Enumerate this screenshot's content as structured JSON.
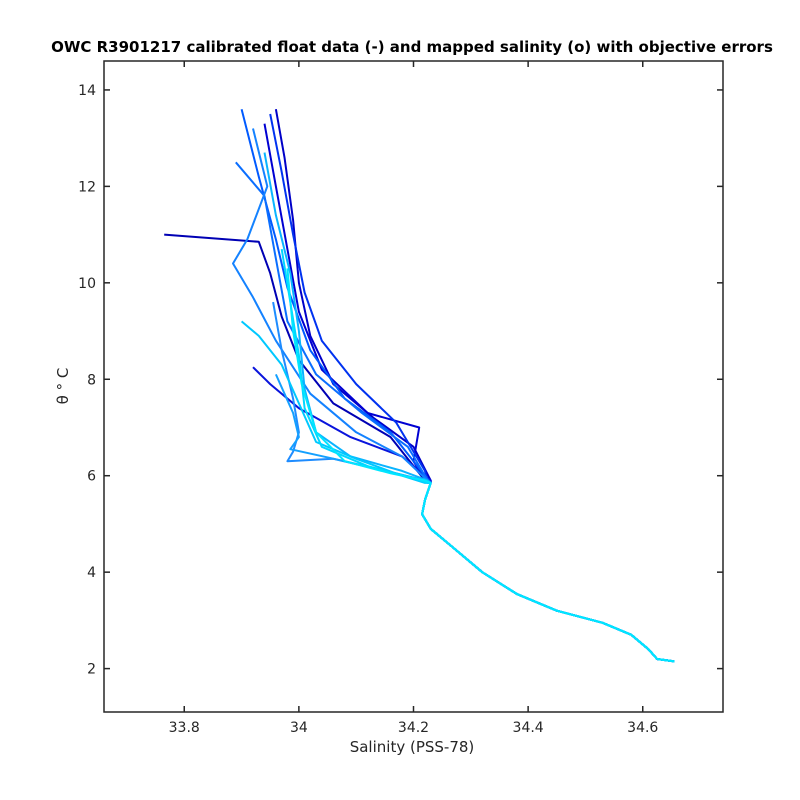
{
  "chart_data": {
    "type": "line",
    "title": "OWC R3901217 calibrated float data (-) and mapped salinity (o) with objective errors",
    "xlabel": "Salinity (PSS-78)",
    "ylabel": "θ ° C",
    "xlim": [
      33.66,
      34.74
    ],
    "ylim": [
      1.1,
      14.6
    ],
    "x_ticks": [
      33.8,
      34,
      34.2,
      34.4,
      34.6
    ],
    "x_tick_labels": [
      "33.8",
      "34",
      "34.2",
      "34.4",
      "34.6"
    ],
    "y_ticks": [
      2,
      4,
      6,
      8,
      10,
      12,
      14
    ],
    "y_tick_labels": [
      "2",
      "4",
      "6",
      "8",
      "10",
      "12",
      "14"
    ],
    "grid": false,
    "legend": "none",
    "color_ramp": [
      "#0000c8",
      "#005aff",
      "#1e8cff",
      "#00e6ff"
    ],
    "deep_curve": [
      {
        "s": 34.23,
        "t": 5.85
      },
      {
        "s": 34.22,
        "t": 5.5
      },
      {
        "s": 34.215,
        "t": 5.2
      },
      {
        "s": 34.23,
        "t": 4.9
      },
      {
        "s": 34.27,
        "t": 4.5
      },
      {
        "s": 34.32,
        "t": 4.0
      },
      {
        "s": 34.38,
        "t": 3.55
      },
      {
        "s": 34.45,
        "t": 3.2
      },
      {
        "s": 34.53,
        "t": 2.95
      },
      {
        "s": 34.58,
        "t": 2.7
      },
      {
        "s": 34.61,
        "t": 2.4
      },
      {
        "s": 34.625,
        "t": 2.2
      },
      {
        "s": 34.655,
        "t": 2.15
      }
    ],
    "series": [
      {
        "color": "#0000c8",
        "points": [
          {
            "s": 33.96,
            "t": 13.6
          },
          {
            "s": 33.975,
            "t": 12.6
          },
          {
            "s": 33.99,
            "t": 11.3
          },
          {
            "s": 34.0,
            "t": 10.0
          },
          {
            "s": 34.02,
            "t": 8.9
          },
          {
            "s": 34.06,
            "t": 7.9
          },
          {
            "s": 34.13,
            "t": 7.2
          },
          {
            "s": 34.2,
            "t": 6.6
          },
          {
            "s": 34.23,
            "t": 5.9
          }
        ]
      },
      {
        "color": "#0000d2",
        "points": [
          {
            "s": 33.94,
            "t": 13.3
          },
          {
            "s": 33.96,
            "t": 12.0
          },
          {
            "s": 33.98,
            "t": 10.7
          },
          {
            "s": 34.0,
            "t": 9.4
          },
          {
            "s": 34.04,
            "t": 8.2
          },
          {
            "s": 34.12,
            "t": 7.3
          },
          {
            "s": 34.21,
            "t": 7.0
          },
          {
            "s": 34.2,
            "t": 6.3
          },
          {
            "s": 34.22,
            "t": 5.9
          }
        ]
      },
      {
        "color": "#0000b4",
        "points": [
          {
            "s": 33.765,
            "t": 11.0
          },
          {
            "s": 33.93,
            "t": 10.85
          },
          {
            "s": 33.95,
            "t": 10.2
          },
          {
            "s": 33.97,
            "t": 9.3
          },
          {
            "s": 34.0,
            "t": 8.4
          },
          {
            "s": 34.06,
            "t": 7.5
          },
          {
            "s": 34.16,
            "t": 6.8
          },
          {
            "s": 34.22,
            "t": 5.9
          }
        ]
      },
      {
        "color": "#0a14dc",
        "points": [
          {
            "s": 33.92,
            "t": 8.25
          },
          {
            "s": 33.95,
            "t": 7.9
          },
          {
            "s": 34.0,
            "t": 7.4
          },
          {
            "s": 34.09,
            "t": 6.8
          },
          {
            "s": 34.18,
            "t": 6.4
          },
          {
            "s": 34.23,
            "t": 5.9
          }
        ]
      },
      {
        "color": "#0032f0",
        "points": [
          {
            "s": 33.95,
            "t": 13.5
          },
          {
            "s": 33.97,
            "t": 12.3
          },
          {
            "s": 33.99,
            "t": 11.0
          },
          {
            "s": 34.01,
            "t": 9.8
          },
          {
            "s": 34.04,
            "t": 8.8
          },
          {
            "s": 34.1,
            "t": 7.9
          },
          {
            "s": 34.17,
            "t": 7.1
          },
          {
            "s": 34.22,
            "t": 6.1
          },
          {
            "s": 34.225,
            "t": 5.85
          }
        ]
      },
      {
        "color": "#005aff",
        "points": [
          {
            "s": 33.9,
            "t": 13.6
          },
          {
            "s": 33.93,
            "t": 12.2
          },
          {
            "s": 33.96,
            "t": 10.9
          },
          {
            "s": 33.98,
            "t": 9.9
          },
          {
            "s": 34.02,
            "t": 8.6
          },
          {
            "s": 34.08,
            "t": 7.6
          },
          {
            "s": 34.16,
            "t": 6.9
          },
          {
            "s": 34.22,
            "t": 6.0
          }
        ]
      },
      {
        "color": "#0a6eff",
        "points": [
          {
            "s": 33.89,
            "t": 12.5
          },
          {
            "s": 33.94,
            "t": 11.8
          },
          {
            "s": 33.96,
            "t": 10.5
          },
          {
            "s": 33.98,
            "t": 9.2
          },
          {
            "s": 34.03,
            "t": 8.1
          },
          {
            "s": 34.11,
            "t": 7.3
          },
          {
            "s": 34.19,
            "t": 6.6
          },
          {
            "s": 34.225,
            "t": 5.9
          }
        ]
      },
      {
        "color": "#1482ff",
        "points": [
          {
            "s": 33.92,
            "t": 13.2
          },
          {
            "s": 33.945,
            "t": 12.0
          },
          {
            "s": 33.91,
            "t": 10.9
          },
          {
            "s": 33.885,
            "t": 10.4
          },
          {
            "s": 33.92,
            "t": 9.7
          },
          {
            "s": 33.96,
            "t": 8.8
          },
          {
            "s": 34.02,
            "t": 7.7
          },
          {
            "s": 34.1,
            "t": 6.9
          },
          {
            "s": 34.18,
            "t": 6.4
          },
          {
            "s": 34.22,
            "t": 5.95
          }
        ]
      },
      {
        "color": "#1e8cff",
        "points": [
          {
            "s": 33.955,
            "t": 9.6
          },
          {
            "s": 33.97,
            "t": 8.6
          },
          {
            "s": 33.99,
            "t": 7.6
          },
          {
            "s": 34.0,
            "t": 6.9
          },
          {
            "s": 33.99,
            "t": 6.5
          },
          {
            "s": 33.98,
            "t": 6.3
          },
          {
            "s": 34.06,
            "t": 6.35
          },
          {
            "s": 34.15,
            "t": 6.1
          },
          {
            "s": 34.22,
            "t": 5.9
          }
        ]
      },
      {
        "color": "#14a0ff",
        "points": [
          {
            "s": 33.96,
            "t": 8.1
          },
          {
            "s": 33.99,
            "t": 7.3
          },
          {
            "s": 34.0,
            "t": 6.8
          },
          {
            "s": 33.985,
            "t": 6.55
          },
          {
            "s": 34.08,
            "t": 6.3
          },
          {
            "s": 34.17,
            "t": 6.05
          },
          {
            "s": 34.22,
            "t": 5.9
          }
        ]
      },
      {
        "color": "#0ab4ff",
        "points": [
          {
            "s": 33.94,
            "t": 12.7
          },
          {
            "s": 33.96,
            "t": 11.4
          },
          {
            "s": 33.985,
            "t": 10.2
          },
          {
            "s": 34.0,
            "t": 9.0
          },
          {
            "s": 34.01,
            "t": 7.8
          },
          {
            "s": 34.03,
            "t": 6.9
          },
          {
            "s": 34.09,
            "t": 6.4
          },
          {
            "s": 34.18,
            "t": 6.1
          },
          {
            "s": 34.225,
            "t": 5.9
          }
        ]
      },
      {
        "color": "#00c8ff",
        "points": [
          {
            "s": 33.9,
            "t": 9.2
          },
          {
            "s": 33.93,
            "t": 8.9
          },
          {
            "s": 33.97,
            "t": 8.3
          },
          {
            "s": 34.0,
            "t": 7.5
          },
          {
            "s": 34.03,
            "t": 6.7
          },
          {
            "s": 34.1,
            "t": 6.35
          },
          {
            "s": 34.18,
            "t": 6.0
          },
          {
            "s": 34.22,
            "t": 5.85
          }
        ]
      },
      {
        "color": "#00d7ff",
        "points": [
          {
            "s": 33.97,
            "t": 10.7
          },
          {
            "s": 33.985,
            "t": 9.6
          },
          {
            "s": 34.0,
            "t": 8.5
          },
          {
            "s": 34.01,
            "t": 7.4
          },
          {
            "s": 34.04,
            "t": 6.6
          },
          {
            "s": 34.12,
            "t": 6.2
          },
          {
            "s": 34.2,
            "t": 5.95
          },
          {
            "s": 34.225,
            "t": 5.85
          }
        ]
      },
      {
        "color": "#00e6ff",
        "points": [
          {
            "s": 33.98,
            "t": 10.3
          },
          {
            "s": 33.99,
            "t": 9.0
          },
          {
            "s": 34.005,
            "t": 7.9
          },
          {
            "s": 34.03,
            "t": 6.9
          },
          {
            "s": 34.08,
            "t": 6.3
          },
          {
            "s": 34.16,
            "t": 6.05
          },
          {
            "s": 34.22,
            "t": 5.9
          }
        ]
      }
    ]
  }
}
